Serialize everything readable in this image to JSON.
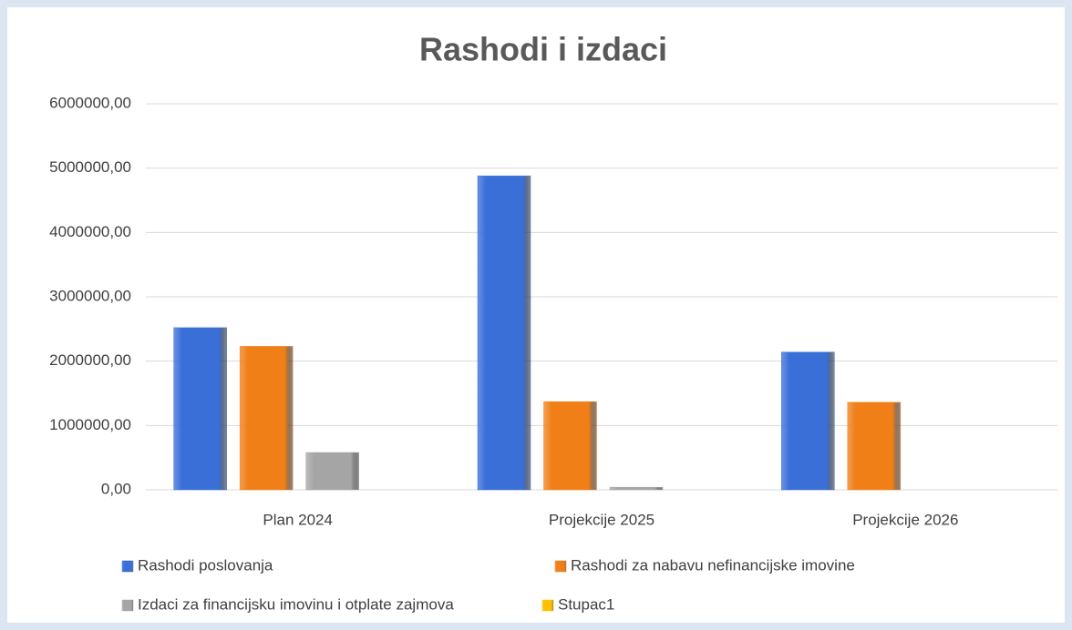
{
  "chart_data": {
    "type": "bar",
    "title": "Rashodi i izdaci",
    "categories": [
      "Plan 2024",
      "Projekcije 2025",
      "Projekcije 2026"
    ],
    "series": [
      {
        "name": "Rashodi poslovanja",
        "color": "#3a6fd8",
        "values": [
          2520000,
          4880000,
          2140000
        ]
      },
      {
        "name": "Rashodi za nabavu nefinancijske imovine",
        "color": "#f07f18",
        "values": [
          2230000,
          1370000,
          1360000
        ]
      },
      {
        "name": "Izdaci za financijsku imovinu i otplate zajmova",
        "color": "#a5a5a5",
        "values": [
          580000,
          40000,
          0
        ]
      },
      {
        "name": "Stupac1",
        "color": "#ffc000",
        "values": [
          null,
          null,
          null
        ]
      }
    ],
    "ylim": [
      0,
      6000000
    ],
    "yticks": [
      {
        "value": 0,
        "label": "0,00"
      },
      {
        "value": 1000000,
        "label": "1000000,00"
      },
      {
        "value": 2000000,
        "label": "2000000,00"
      },
      {
        "value": 3000000,
        "label": "3000000,00"
      },
      {
        "value": 4000000,
        "label": "4000000,00"
      },
      {
        "value": 5000000,
        "label": "5000000,00"
      },
      {
        "value": 6000000,
        "label": "6000000,00"
      }
    ],
    "grid": true,
    "legend": "bottom"
  }
}
